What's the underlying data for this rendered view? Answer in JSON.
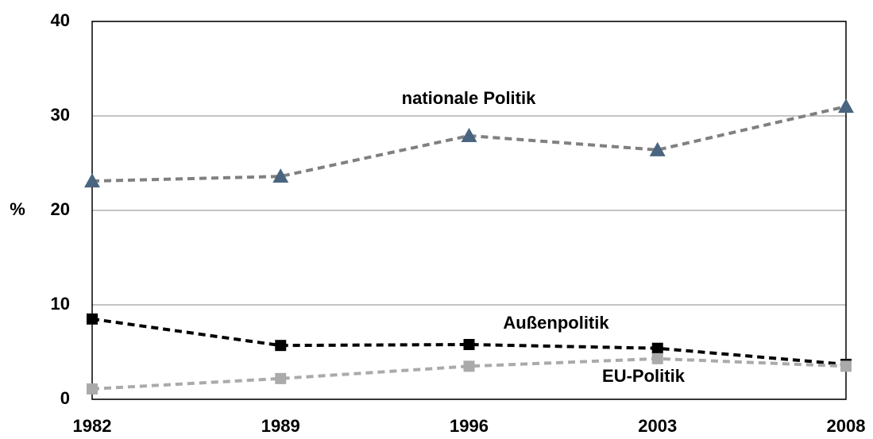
{
  "chart_data": {
    "type": "line",
    "ylabel": "%",
    "categories": [
      "1982",
      "1989",
      "1996",
      "2003",
      "2008"
    ],
    "series": [
      {
        "name": "nationale Politik",
        "color": "#808080",
        "marker_color": "#4a6580",
        "marker": "triangle",
        "values": [
          23.1,
          23.6,
          27.9,
          26.4,
          31.0
        ]
      },
      {
        "name": "Außenpolitik",
        "color": "#000000",
        "marker_color": "#000000",
        "marker": "square",
        "values": [
          8.5,
          5.7,
          5.8,
          5.4,
          3.7
        ]
      },
      {
        "name": "EU-Politik",
        "color": "#aaaaaa",
        "marker_color": "#aaaaaa",
        "marker": "square",
        "values": [
          1.1,
          2.2,
          3.5,
          4.3,
          3.5
        ]
      }
    ],
    "ylim": [
      0,
      40
    ],
    "yticks": [
      0,
      10,
      20,
      30,
      40
    ],
    "grid": true
  }
}
